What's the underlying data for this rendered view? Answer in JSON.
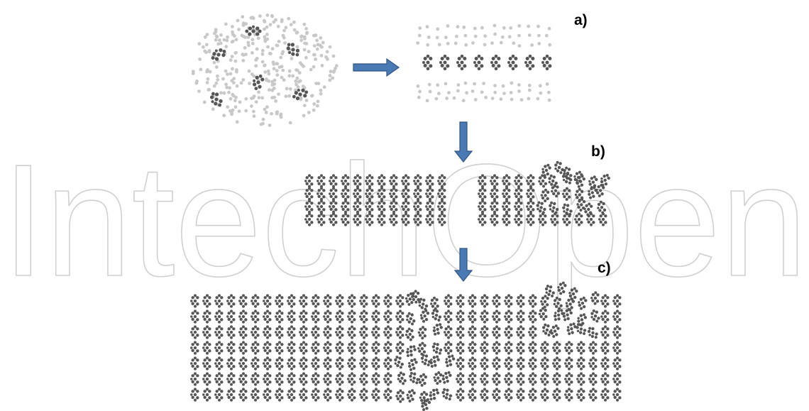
{
  "panels": {
    "a": {
      "label": "a)"
    },
    "b": {
      "label": "b)"
    },
    "c": {
      "label": "c)"
    }
  },
  "colors": {
    "molecule": "#555555",
    "solvent": "#c8c8c8",
    "watermark": "#cfcfcf",
    "arrow_fill": "#4a7ab4",
    "arrow_stroke": "#2f5585"
  },
  "watermark": {
    "text": "IntechOpen"
  }
}
